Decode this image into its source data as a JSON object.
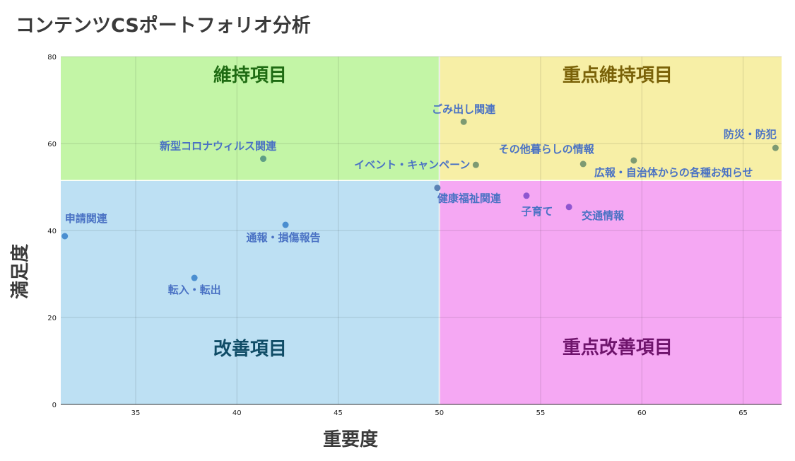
{
  "title": "コンテンツCSポートフォリオ分析",
  "chart_data": {
    "type": "scatter",
    "title": "コンテンツCSポートフォリオ分析",
    "xlabel": "重要度",
    "ylabel": "満足度",
    "xlim": [
      31.3,
      66.9
    ],
    "ylim": [
      0,
      80
    ],
    "x_ticks": [
      35,
      40,
      45,
      50,
      55,
      60,
      65
    ],
    "y_ticks": [
      0,
      20,
      40,
      60,
      80
    ],
    "x_divider": 50,
    "y_divider": 51.5,
    "grid": true,
    "quadrants": [
      {
        "label": "維持項目",
        "position": "top-left",
        "fill": "#c3f5a6",
        "text_color": "#1e6b12"
      },
      {
        "label": "重点維持項目",
        "position": "top-right",
        "fill": "#f7efa6",
        "text_color": "#7a6208"
      },
      {
        "label": "改善項目",
        "position": "bottom-left",
        "fill": "#bde0f3",
        "text_color": "#0f4c66"
      },
      {
        "label": "重点改善項目",
        "position": "bottom-right",
        "fill": "#f5a8f3",
        "text_color": "#6f146c"
      }
    ],
    "points": [
      {
        "label": "申請関連",
        "x": 31.5,
        "y": 38.7,
        "color": "#4a8ed0"
      },
      {
        "label": "転入・転出",
        "x": 37.9,
        "y": 29.1,
        "color": "#4a8ed0"
      },
      {
        "label": "通報・損傷報告",
        "x": 42.4,
        "y": 41.3,
        "color": "#4a8ed0"
      },
      {
        "label": "新型コロナウィルス関連",
        "x": 41.3,
        "y": 56.5,
        "color": "#5e9e86"
      },
      {
        "label": "健康福祉関連",
        "x": 49.9,
        "y": 49.8,
        "color": "#5a82b4"
      },
      {
        "label": "ごみ出し関連",
        "x": 51.2,
        "y": 65.0,
        "color": "#7d9a72"
      },
      {
        "label": "イベント・キャンペーン",
        "x": 51.8,
        "y": 55.1,
        "color": "#7d9a72"
      },
      {
        "label": "子育て",
        "x": 54.3,
        "y": 48.0,
        "color": "#8e56d0"
      },
      {
        "label": "交通情報",
        "x": 56.4,
        "y": 45.4,
        "color": "#8e56d0"
      },
      {
        "label": "その他暮らしの情報",
        "x": 57.1,
        "y": 55.3,
        "color": "#7d9a72"
      },
      {
        "label": "広報・自治体からの各種お知らせ",
        "x": 59.6,
        "y": 56.1,
        "color": "#7d9a72"
      },
      {
        "label": "防災・防犯",
        "x": 66.6,
        "y": 59.0,
        "color": "#7d9a72"
      }
    ],
    "point_label_color": "#4a72c4"
  }
}
